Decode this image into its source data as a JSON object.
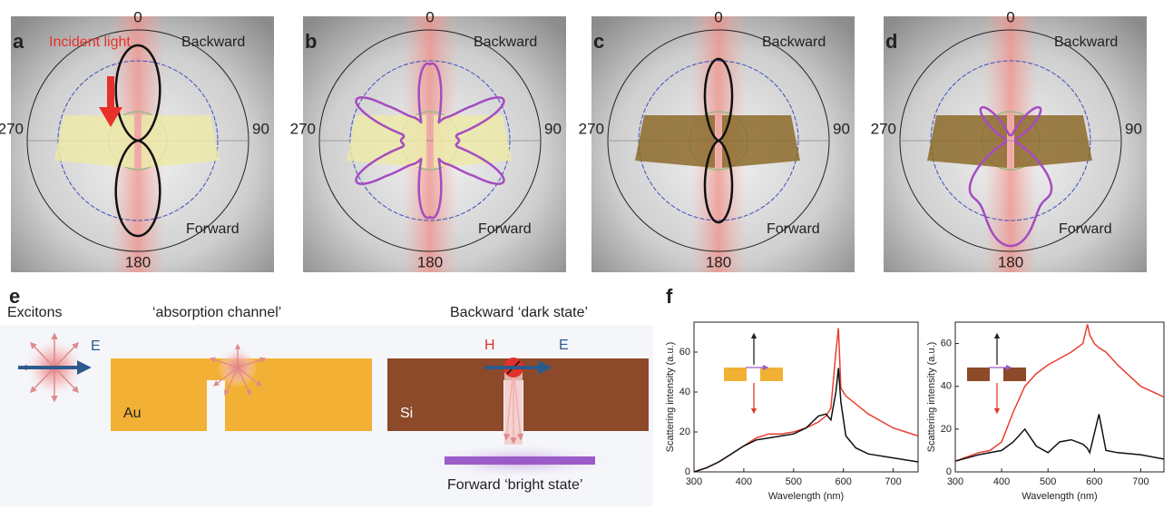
{
  "polar_panels": [
    {
      "letter": "a",
      "angle_labels": [
        "0",
        "90",
        "180",
        "270"
      ],
      "top_label": "Backward",
      "bottom_label": "Forward",
      "annotation": "Incident light"
    },
    {
      "letter": "b",
      "angle_labels": [
        "0",
        "90",
        "180",
        "270"
      ],
      "top_label": "Backward",
      "bottom_label": "Forward"
    },
    {
      "letter": "c",
      "angle_labels": [
        "0",
        "90",
        "180",
        "270"
      ],
      "top_label": "Backward",
      "bottom_label": "Forward"
    },
    {
      "letter": "d",
      "angle_labels": [
        "0",
        "90",
        "180",
        "270"
      ],
      "top_label": "Backward",
      "bottom_label": "Forward"
    }
  ],
  "diagram_e": {
    "letter": "e",
    "excitons": "Excitons",
    "e_field": "E",
    "absorption": "‘absorption channel’",
    "au": "Au",
    "dark": "Backward ‘dark state’",
    "h_field": "H",
    "e_field2": "E",
    "si": "Si",
    "bright": "Forward ‘bright state’"
  },
  "panel_f_letter": "f",
  "chart_data": [
    {
      "type": "line",
      "x_label": "Wavelength (nm)",
      "y_label": "Scattering intensity (a.u.)",
      "x": [
        300,
        325,
        350,
        375,
        400,
        425,
        450,
        475,
        500,
        525,
        550,
        565,
        575,
        585,
        590,
        595,
        605,
        625,
        650,
        700,
        750
      ],
      "xlim": [
        300,
        750
      ],
      "xticks": [
        300,
        400,
        500,
        600,
        700
      ],
      "ylim": [
        0,
        75
      ],
      "yticks": [
        0,
        20,
        40,
        60
      ],
      "series": [
        {
          "color": "#e8402f",
          "values": [
            0,
            2,
            5,
            9,
            13,
            17,
            19,
            19,
            20,
            22,
            25,
            28,
            32,
            60,
            72,
            42,
            38,
            34,
            29,
            22,
            18
          ]
        },
        {
          "color": "#111111",
          "values": [
            0,
            2,
            5,
            9,
            13,
            16,
            17,
            18,
            19,
            22,
            28,
            29,
            26,
            40,
            52,
            35,
            18,
            12,
            9,
            7,
            5
          ]
        }
      ]
    },
    {
      "type": "line",
      "x_label": "Wavelength (nm)",
      "y_label": "Scattering intensity (a.u.)",
      "x": [
        300,
        350,
        375,
        400,
        425,
        450,
        475,
        500,
        525,
        550,
        575,
        585,
        590,
        600,
        610,
        625,
        650,
        700,
        750
      ],
      "xlim": [
        300,
        750
      ],
      "xticks": [
        300,
        400,
        500,
        600,
        700
      ],
      "ylim": [
        0,
        70
      ],
      "yticks": [
        0,
        20,
        40,
        60
      ],
      "series": [
        {
          "color": "#e8402f",
          "values": [
            5,
            9,
            10,
            14,
            28,
            40,
            46,
            50,
            53,
            56,
            60,
            69,
            64,
            60,
            58,
            56,
            50,
            40,
            35
          ]
        },
        {
          "color": "#111111",
          "values": [
            5,
            8,
            9,
            10,
            14,
            20,
            12,
            9,
            14,
            15,
            13,
            11,
            9,
            18,
            27,
            10,
            9,
            8,
            6
          ]
        }
      ]
    }
  ]
}
